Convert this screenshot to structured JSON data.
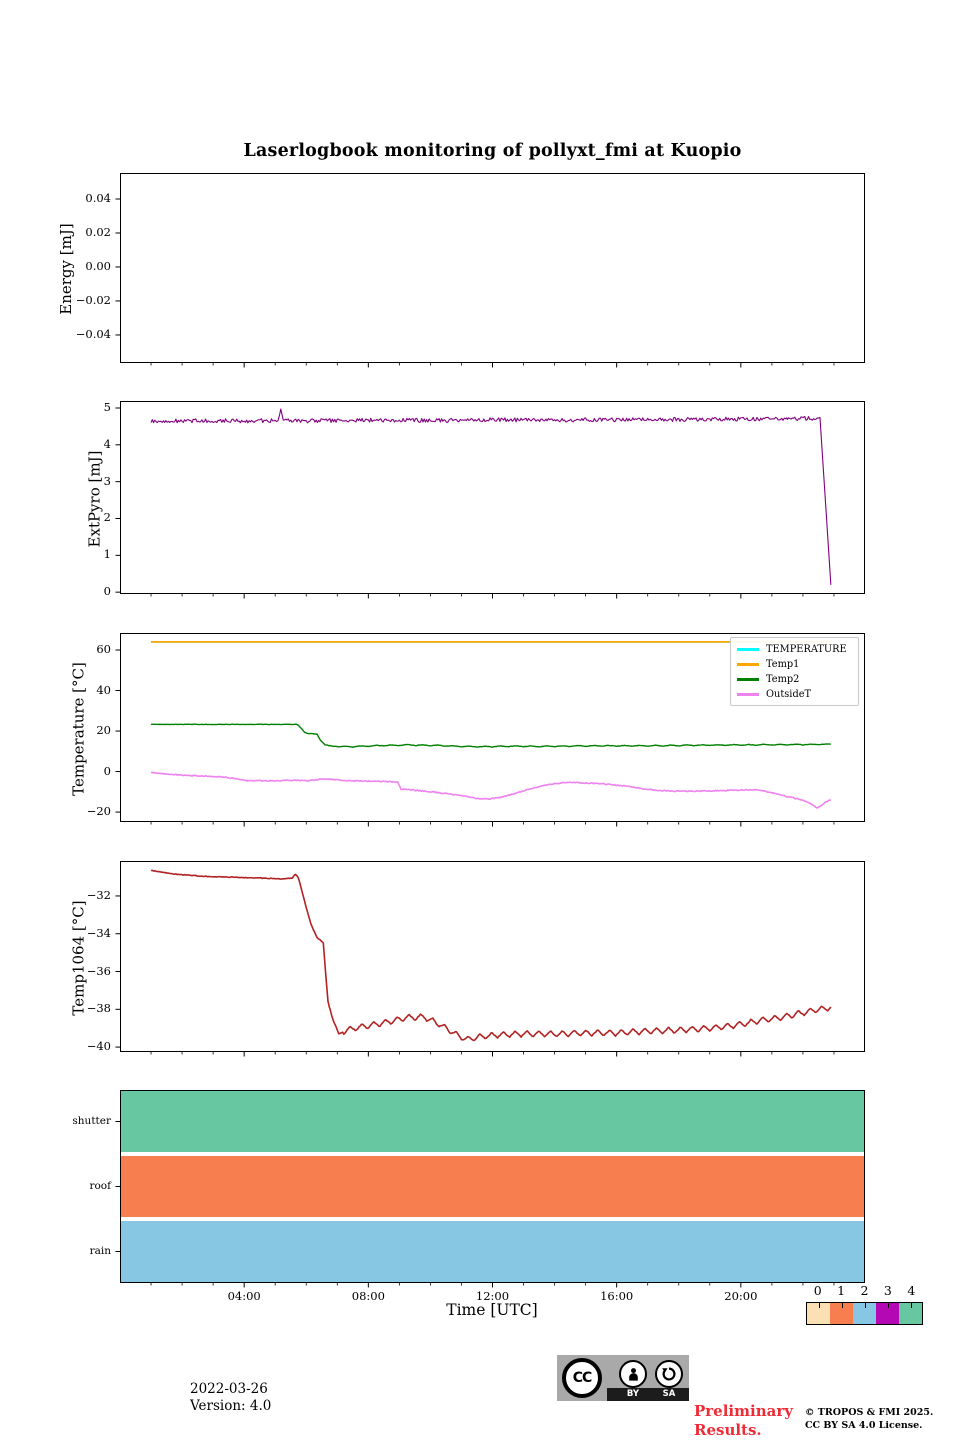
{
  "title": "Laserlogbook monitoring of pollyxt_fmi at Kuopio",
  "xaxis": {
    "label": "Time [UTC]",
    "range_hours": [
      0,
      24
    ],
    "major_ticks": [
      {
        "value": 4,
        "label": "04:00"
      },
      {
        "value": 8,
        "label": "08:00"
      },
      {
        "value": 12,
        "label": "12:00"
      },
      {
        "value": 16,
        "label": "16:00"
      },
      {
        "value": 20,
        "label": "20:00"
      }
    ],
    "minor_tick_every_hours": 1
  },
  "chart_data": [
    {
      "type": "line",
      "name": "energy",
      "ylabel": "Energy [mJ]",
      "ylim": [
        -0.0565,
        0.0553
      ],
      "yticks": [
        {
          "value": 0.04,
          "label": "0.04"
        },
        {
          "value": 0.02,
          "label": "0.02"
        },
        {
          "value": 0.0,
          "label": "0.00"
        },
        {
          "value": -0.02,
          "label": "−0.02"
        },
        {
          "value": -0.04,
          "label": "−0.04"
        }
      ],
      "series": []
    },
    {
      "type": "line",
      "name": "extpyro",
      "ylabel": "ExtPyro [mJ]",
      "ylim": [
        -0.05,
        5.19
      ],
      "yticks": [
        {
          "value": 5,
          "label": "5"
        },
        {
          "value": 4,
          "label": "4"
        },
        {
          "value": 3,
          "label": "3"
        },
        {
          "value": 2,
          "label": "2"
        },
        {
          "value": 1,
          "label": "1"
        },
        {
          "value": 0,
          "label": "0"
        }
      ],
      "series": [
        {
          "name": "ExtPyro",
          "color": "#800080",
          "lw": 1.1,
          "noise": 0.055,
          "noise_range": [
            1.0,
            22.5
          ],
          "keypoints": [
            [
              1.0,
              4.63
            ],
            [
              2,
              4.65
            ],
            [
              3,
              4.66
            ],
            [
              4,
              4.65
            ],
            [
              5.1,
              4.66
            ],
            [
              5.18,
              5.02
            ],
            [
              5.26,
              4.66
            ],
            [
              6,
              4.65
            ],
            [
              8,
              4.67
            ],
            [
              10,
              4.66
            ],
            [
              12,
              4.68
            ],
            [
              14,
              4.67
            ],
            [
              16,
              4.68
            ],
            [
              18,
              4.69
            ],
            [
              20,
              4.7
            ],
            [
              21.5,
              4.71
            ],
            [
              22.3,
              4.72
            ],
            [
              22.55,
              4.74
            ],
            [
              22.9,
              0.2
            ]
          ]
        }
      ]
    },
    {
      "type": "line",
      "name": "temperature",
      "ylabel": "Temperature [°C]",
      "ylim": [
        -24.9,
        68.4
      ],
      "yticks": [
        {
          "value": 60,
          "label": "60"
        },
        {
          "value": 40,
          "label": "40"
        },
        {
          "value": 20,
          "label": "20"
        },
        {
          "value": 0,
          "label": "0"
        },
        {
          "value": -20,
          "label": "−20"
        }
      ],
      "legend": {
        "position": "upper right",
        "entries": [
          {
            "label": "TEMPERATURE",
            "color": "#00FFFF"
          },
          {
            "label": "Temp1",
            "color": "#FFA500"
          },
          {
            "label": "Temp2",
            "color": "#008000"
          },
          {
            "label": "OutsideT",
            "color": "#EE82EE"
          }
        ]
      },
      "series": [
        {
          "name": "TEMPERATURE",
          "color": "#00FFFF",
          "lw": 1.8,
          "keypoints": [
            [
              1.0,
              64
            ],
            [
              22.9,
              64
            ]
          ]
        },
        {
          "name": "Temp1",
          "color": "#FFA500",
          "lw": 1.8,
          "keypoints": [
            [
              1.0,
              64
            ],
            [
              22.9,
              64
            ]
          ]
        },
        {
          "name": "Temp2",
          "color": "#008000",
          "lw": 1.4,
          "noise": 0.12,
          "zigzag": {
            "start": 7.0,
            "amp": 0.22,
            "period": 0.5
          },
          "keypoints": [
            [
              1,
              23.3
            ],
            [
              5.7,
              23.3
            ],
            [
              5.8,
              22.0
            ],
            [
              5.95,
              19.3
            ],
            [
              6.1,
              18.7
            ],
            [
              6.35,
              18.5
            ],
            [
              6.45,
              15.5
            ],
            [
              6.6,
              13.2
            ],
            [
              6.9,
              12.4
            ],
            [
              7.5,
              12.3
            ],
            [
              8.5,
              12.9
            ],
            [
              9.3,
              13.1
            ],
            [
              10.2,
              12.9
            ],
            [
              11,
              12.4
            ],
            [
              11.8,
              12.3
            ],
            [
              12.6,
              12.5
            ],
            [
              13.5,
              12.4
            ],
            [
              14.5,
              12.6
            ],
            [
              15.5,
              12.7
            ],
            [
              16.5,
              12.7
            ],
            [
              17.5,
              12.8
            ],
            [
              18.5,
              13.0
            ],
            [
              19.5,
              13.1
            ],
            [
              20.5,
              13.2
            ],
            [
              21.5,
              13.3
            ],
            [
              22.4,
              13.4
            ],
            [
              22.9,
              13.5
            ]
          ]
        },
        {
          "name": "OutsideT",
          "color": "#EE82EE",
          "lw": 1.6,
          "noise": 0.25,
          "keypoints": [
            [
              1,
              -0.5
            ],
            [
              1.6,
              -1.3
            ],
            [
              2.2,
              -2.0
            ],
            [
              3.0,
              -2.3
            ],
            [
              3.4,
              -2.8
            ],
            [
              4.1,
              -4.4
            ],
            [
              4.8,
              -4.6
            ],
            [
              5.6,
              -4.3
            ],
            [
              6.1,
              -4.5
            ],
            [
              6.4,
              -3.9
            ],
            [
              6.8,
              -3.8
            ],
            [
              7.2,
              -4.4
            ],
            [
              7.9,
              -4.7
            ],
            [
              8.6,
              -4.9
            ],
            [
              8.95,
              -5.1
            ],
            [
              9.05,
              -8.7
            ],
            [
              9.5,
              -9.2
            ],
            [
              10.2,
              -10.3
            ],
            [
              10.9,
              -11.6
            ],
            [
              11.5,
              -13.2
            ],
            [
              11.85,
              -13.6
            ],
            [
              12.2,
              -12.9
            ],
            [
              12.7,
              -11.0
            ],
            [
              13.2,
              -8.6
            ],
            [
              13.8,
              -6.4
            ],
            [
              14.35,
              -5.3
            ],
            [
              14.9,
              -5.6
            ],
            [
              15.6,
              -6.1
            ],
            [
              16.3,
              -7.2
            ],
            [
              16.9,
              -8.6
            ],
            [
              17.4,
              -9.4
            ],
            [
              18.1,
              -9.7
            ],
            [
              18.9,
              -9.6
            ],
            [
              19.6,
              -9.3
            ],
            [
              20.2,
              -9.0
            ],
            [
              20.6,
              -9.2
            ],
            [
              21.0,
              -10.4
            ],
            [
              21.5,
              -12.4
            ],
            [
              22.0,
              -14.0
            ],
            [
              22.3,
              -16.4
            ],
            [
              22.45,
              -17.8
            ],
            [
              22.6,
              -16.9
            ],
            [
              22.75,
              -14.9
            ],
            [
              22.9,
              -13.8
            ]
          ]
        }
      ]
    },
    {
      "type": "line",
      "name": "temp1064",
      "ylabel": "Temp1064 [°C]",
      "ylim": [
        -40.26,
        -30.15
      ],
      "yticks": [
        {
          "value": -32,
          "label": "−32"
        },
        {
          "value": -34,
          "label": "−34"
        },
        {
          "value": -36,
          "label": "−36"
        },
        {
          "value": -38,
          "label": "−38"
        },
        {
          "value": -40,
          "label": "−40"
        }
      ],
      "series": [
        {
          "name": "Temp1064",
          "color": "#B22222",
          "lw": 1.6,
          "noise": 0.02,
          "zigzag": {
            "start": 7.2,
            "amp": 0.16,
            "period": 0.38
          },
          "keypoints": [
            [
              1,
              -30.65
            ],
            [
              1.8,
              -30.85
            ],
            [
              2.6,
              -30.95
            ],
            [
              3.5,
              -31.0
            ],
            [
              4.5,
              -31.05
            ],
            [
              5.3,
              -31.1
            ],
            [
              5.55,
              -31.05
            ],
            [
              5.65,
              -30.85
            ],
            [
              5.75,
              -31.05
            ],
            [
              5.95,
              -32.3
            ],
            [
              6.15,
              -33.5
            ],
            [
              6.35,
              -34.2
            ],
            [
              6.55,
              -34.5
            ],
            [
              6.62,
              -36.0
            ],
            [
              6.7,
              -37.6
            ],
            [
              6.85,
              -38.5
            ],
            [
              7.05,
              -39.3
            ],
            [
              7.3,
              -39.1
            ],
            [
              7.7,
              -38.95
            ],
            [
              8.4,
              -38.75
            ],
            [
              9.2,
              -38.45
            ],
            [
              9.8,
              -38.4
            ],
            [
              10.3,
              -38.8
            ],
            [
              10.8,
              -39.3
            ],
            [
              11.15,
              -39.6
            ],
            [
              11.6,
              -39.45
            ],
            [
              12.2,
              -39.35
            ],
            [
              13.0,
              -39.3
            ],
            [
              14.0,
              -39.3
            ],
            [
              15.0,
              -39.25
            ],
            [
              16.0,
              -39.25
            ],
            [
              17.0,
              -39.15
            ],
            [
              18.0,
              -39.1
            ],
            [
              19.0,
              -39.0
            ],
            [
              19.8,
              -38.85
            ],
            [
              20.6,
              -38.6
            ],
            [
              21.4,
              -38.4
            ],
            [
              22.2,
              -38.1
            ],
            [
              22.9,
              -37.9
            ]
          ]
        }
      ]
    },
    {
      "type": "status-bars",
      "name": "status",
      "span_hours": [
        0,
        24
      ],
      "categories": [
        {
          "label": "shutter",
          "color": "#66C7A1",
          "value": 4
        },
        {
          "label": "roof",
          "color": "#F67E4F",
          "value": 1
        },
        {
          "label": "rain",
          "color": "#87C7E4",
          "value": 2
        }
      ]
    }
  ],
  "colorbar": {
    "tick_labels": [
      "0",
      "1",
      "2",
      "3",
      "4"
    ],
    "colors": [
      "#FAE0B2",
      "#F67E4F",
      "#87C7E4",
      "#B408B4",
      "#66C7A1"
    ]
  },
  "footer": {
    "date": "2022-03-26",
    "version": "Version: 4.0",
    "preliminary": "Preliminary Results.",
    "preliminary_color": "#EF2B36",
    "copyright_line1": "© TROPOS & FMI 2025.",
    "copyright_line2": "CC BY SA 4.0 License.",
    "cc_badge": {
      "cc": "CC",
      "by": "BY",
      "sa": "SA"
    }
  }
}
